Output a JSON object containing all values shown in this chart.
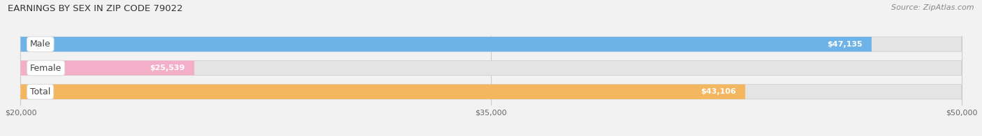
{
  "title": "EARNINGS BY SEX IN ZIP CODE 79022",
  "source": "Source: ZipAtlas.com",
  "categories": [
    "Male",
    "Female",
    "Total"
  ],
  "values": [
    47135,
    25539,
    43106
  ],
  "bar_colors": [
    "#6db3e8",
    "#f4afc8",
    "#f5b660"
  ],
  "value_labels": [
    "$47,135",
    "$25,539",
    "$43,106"
  ],
  "xmin": 20000,
  "xmax": 50000,
  "xticks": [
    20000,
    35000,
    50000
  ],
  "xtick_labels": [
    "$20,000",
    "$35,000",
    "$50,000"
  ],
  "background_color": "#f2f2f2",
  "bar_bg_color": "#e0e0e0",
  "title_fontsize": 9.5,
  "source_fontsize": 8,
  "label_fontsize": 9,
  "value_fontsize": 8
}
